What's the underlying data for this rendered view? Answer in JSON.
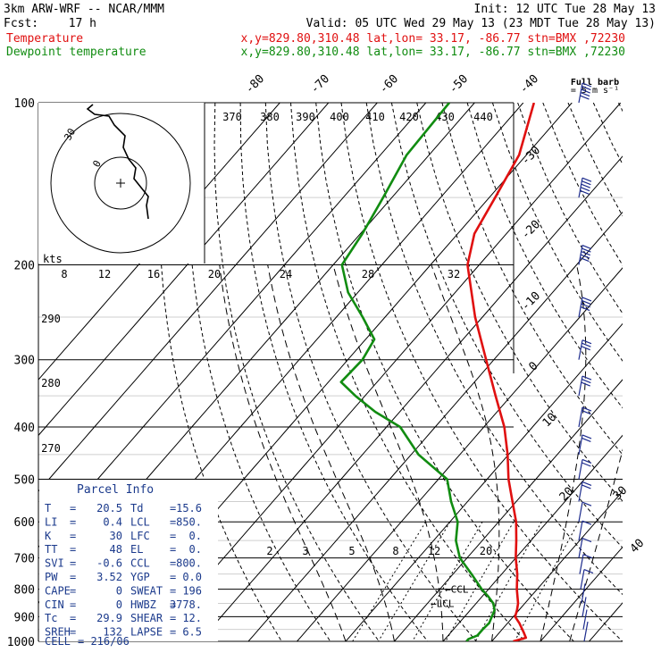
{
  "header": {
    "model": "3km ARW-WRF -- NCAR/MMM",
    "init": "Init: 12 UTC Tue 28 May 13",
    "fcst_label": "Fcst:",
    "fcst_value": "17 h",
    "valid": "Valid: 05 UTC Wed 29 May 13 (23 MDT Tue 28 May 13)",
    "temp_legend": "Temperature",
    "temp_info": "x,y=829.80,310.48   lat,lon= 33.17, -86.77   stn=BMX ,72230",
    "dew_legend": "Dewpoint temperature",
    "dew_info": "x,y=829.80,310.48   lat,lon= 33.17, -86.77   stn=BMX ,72230",
    "barb_title": "Full barb",
    "barb_unit": "= 5 m s⁻¹"
  },
  "colors": {
    "temperature": "#e01010",
    "dewpoint": "#118c11",
    "parcel_text": "#1b3a8c",
    "wind": "#1b2a8c"
  },
  "chart_data": {
    "type": "line",
    "chart_kind": "skew-T log-P sounding",
    "y_scale": "log",
    "pressure_ticks": [
      "100",
      "200",
      "300",
      "400",
      "500",
      "600",
      "700",
      "800",
      "900",
      "1000"
    ],
    "isotherm_labels": [
      "-80",
      "-70",
      "-60",
      "-50",
      "-40",
      "-30",
      "-20",
      "-10",
      "0",
      "10",
      "20",
      "30",
      "40"
    ],
    "theta_labels_top": [
      "370",
      "380",
      "390",
      "400",
      "410",
      "420",
      "430",
      "440"
    ],
    "theta_labels_side": [
      "290",
      "280",
      "270"
    ],
    "mixing_ratio_labels": [
      "2",
      "3",
      "5",
      "8",
      "12",
      "20"
    ],
    "hodo_scale_labels": [
      "8",
      "12",
      "16",
      "20",
      "24",
      "28",
      "32"
    ],
    "hodo_kts_label": "kts",
    "hodo_ring_labels": [
      "30",
      "0"
    ],
    "ccl_label": "CCL",
    "lcl_label": "LCL",
    "series": [
      {
        "name": "Temperature",
        "points": [
          [
            1000,
            24.4
          ],
          [
            985,
            26.4
          ],
          [
            960,
            24.8
          ],
          [
            925,
            22.4
          ],
          [
            900,
            20.4
          ],
          [
            875,
            19.6
          ],
          [
            850,
            18.6
          ],
          [
            800,
            15.8
          ],
          [
            750,
            13.2
          ],
          [
            700,
            10.0
          ],
          [
            650,
            7.0
          ],
          [
            600,
            3.6
          ],
          [
            550,
            -0.8
          ],
          [
            500,
            -5.6
          ],
          [
            450,
            -10.2
          ],
          [
            400,
            -15.8
          ],
          [
            350,
            -23.2
          ],
          [
            300,
            -31.6
          ],
          [
            250,
            -41.5
          ],
          [
            200,
            -52.4
          ],
          [
            175,
            -56.6
          ],
          [
            150,
            -58.8
          ],
          [
            125,
            -61.5
          ],
          [
            100,
            -67.8
          ]
        ]
      },
      {
        "name": "Dewpoint temperature",
        "points": [
          [
            1000,
            14.8
          ],
          [
            990,
            14.8
          ],
          [
            975,
            16.0
          ],
          [
            950,
            16.0
          ],
          [
            925,
            16.2
          ],
          [
            900,
            15.6
          ],
          [
            875,
            15.0
          ],
          [
            850,
            13.5
          ],
          [
            825,
            11.2
          ],
          [
            800,
            8.6
          ],
          [
            750,
            3.8
          ],
          [
            700,
            -1.5
          ],
          [
            650,
            -5.4
          ],
          [
            600,
            -8.4
          ],
          [
            550,
            -13.4
          ],
          [
            500,
            -18.2
          ],
          [
            450,
            -28.5
          ],
          [
            400,
            -37.2
          ],
          [
            375,
            -45.0
          ],
          [
            350,
            -52.0
          ],
          [
            330,
            -57.4
          ],
          [
            300,
            -57.0
          ],
          [
            275,
            -58.2
          ],
          [
            250,
            -64.6
          ],
          [
            225,
            -72.0
          ],
          [
            200,
            -78.2
          ],
          [
            175,
            -79.6
          ],
          [
            150,
            -81.8
          ],
          [
            125,
            -84.6
          ],
          [
            100,
            -85.2
          ]
        ]
      }
    ],
    "hodograph": {
      "u": [
        0.0,
        0.2,
        0.6,
        1.4,
        2.0,
        2.6,
        2.2,
        1.4,
        0.6,
        0.2,
        -0.6,
        -1.0,
        -1.6,
        -2.2,
        -2.8,
        -3.6
      ],
      "v": [
        -5.2,
        -4.2,
        -3.0,
        -2.4,
        -1.6,
        -0.6,
        0.4,
        1.2,
        2.2,
        3.2,
        4.6,
        5.6,
        6.6,
        7.6,
        8.6,
        9.6
      ]
    },
    "winds": [
      {
        "p": 1000,
        "spd": 2,
        "dir": 160
      },
      {
        "p": 950,
        "spd": 3,
        "dir": 200
      },
      {
        "p": 900,
        "spd": 3,
        "dir": 240
      },
      {
        "p": 850,
        "spd": 4,
        "dir": 260
      },
      {
        "p": 800,
        "spd": 5,
        "dir": 270
      },
      {
        "p": 750,
        "spd": 6,
        "dir": 270
      },
      {
        "p": 700,
        "spd": 7,
        "dir": 270
      },
      {
        "p": 650,
        "spd": 8,
        "dir": 275
      },
      {
        "p": 600,
        "spd": 9,
        "dir": 275
      },
      {
        "p": 550,
        "spd": 10,
        "dir": 280
      },
      {
        "p": 500,
        "spd": 11,
        "dir": 285
      },
      {
        "p": 450,
        "spd": 12,
        "dir": 285
      },
      {
        "p": 400,
        "spd": 13,
        "dir": 290
      },
      {
        "p": 350,
        "spd": 15,
        "dir": 290
      },
      {
        "p": 300,
        "spd": 18,
        "dir": 295
      },
      {
        "p": 250,
        "spd": 22,
        "dir": 295
      },
      {
        "p": 200,
        "spd": 25,
        "dir": 290
      },
      {
        "p": 150,
        "spd": 28,
        "dir": 285
      },
      {
        "p": 100,
        "spd": 25,
        "dir": 280
      }
    ]
  },
  "parcel_info": {
    "title": "Parcel Info",
    "rows": [
      {
        "k1": "T",
        "v1": "20.5",
        "k2": "Td",
        "v2": "15.6"
      },
      {
        "k1": "LI",
        "v1": "0.4",
        "k2": "LCL",
        "v2": "850."
      },
      {
        "k1": "K",
        "v1": "30",
        "k2": "LFC",
        "v2": "0."
      },
      {
        "k1": "TT",
        "v1": "48",
        "k2": "EL",
        "v2": "0."
      },
      {
        "k1": "SVI",
        "v1": "-0.6",
        "k2": "CCL",
        "v2": "800."
      },
      {
        "k1": "PW",
        "v1": "3.52",
        "k2": "YGP",
        "v2": "0.0"
      },
      {
        "k1": "CAPE",
        "v1": "0",
        "k2": "SWEAT",
        "v2": "196"
      },
      {
        "k1": "CIN",
        "v1": "0",
        "k2": "HWBZ",
        "v2": "3778."
      },
      {
        "k1": "Tc",
        "v1": "29.9",
        "k2": "SHEAR",
        "v2": "12."
      },
      {
        "k1": "SREH",
        "v1": "132",
        "k2": "LAPSE",
        "v2": "6.5"
      }
    ],
    "cell_label": "CELL",
    "cell_value": "216/06"
  }
}
